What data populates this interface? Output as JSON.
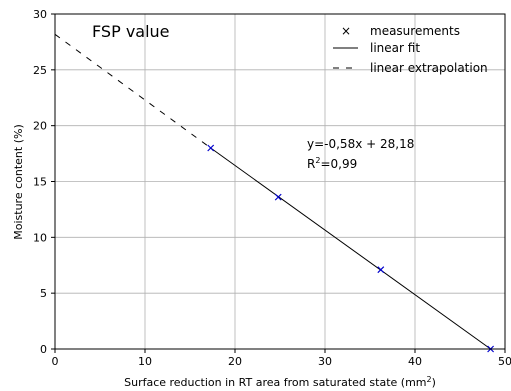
{
  "chart_data": {
    "type": "scatter",
    "title": "",
    "xlabel": "Surface reduction in RT area from saturated state (mm",
    "xlabel_sup": "2",
    "xlabel_suffix": ")",
    "ylabel": "Moisture content (%)",
    "xlim": [
      0,
      50
    ],
    "ylim": [
      0,
      30
    ],
    "x_ticks": [
      0,
      10,
      20,
      30,
      40,
      50
    ],
    "y_ticks": [
      0,
      5,
      10,
      15,
      20,
      25,
      30
    ],
    "grid": true,
    "legend_position": "top-right",
    "series": [
      {
        "name": "measurements",
        "kind": "marker",
        "marker": "x",
        "color": "#0000cc",
        "points": [
          {
            "x": 17.3,
            "y": 18.0
          },
          {
            "x": 24.8,
            "y": 13.6
          },
          {
            "x": 36.2,
            "y": 7.1
          },
          {
            "x": 48.4,
            "y": 0.0
          }
        ]
      },
      {
        "name": "linear fit",
        "kind": "line",
        "style": "solid",
        "color": "#000000",
        "points": [
          {
            "x": 17.3,
            "y": 18.0
          },
          {
            "x": 48.4,
            "y": 0.0
          }
        ]
      },
      {
        "name": "linear extrapolation",
        "kind": "line",
        "style": "dashed",
        "color": "#000000",
        "points": [
          {
            "x": 0,
            "y": 28.18
          },
          {
            "x": 17.3,
            "y": 18.0
          }
        ]
      }
    ],
    "annotations": {
      "fsp_label": "FSP value",
      "equation": "y=-0,58x + 28,18",
      "r2_prefix": "R",
      "r2_sup": "2",
      "r2_value": "=0,99"
    }
  }
}
